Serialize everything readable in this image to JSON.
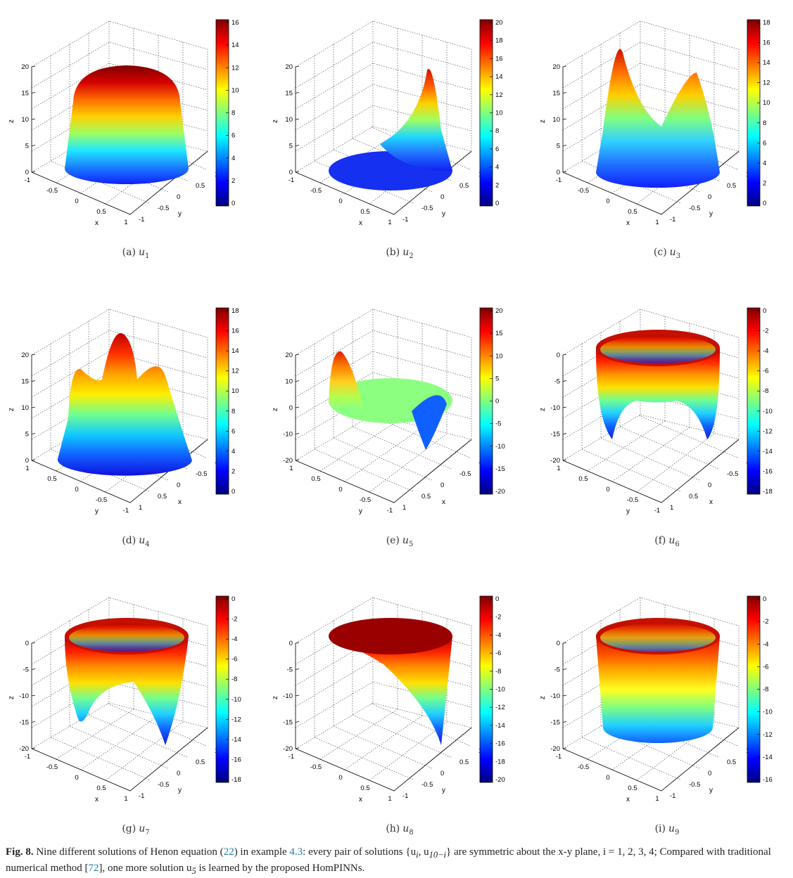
{
  "panels": [
    {
      "id": "a",
      "label": "(a)",
      "var": "u",
      "sub": "1",
      "orient": "xy",
      "zticks": [
        "0",
        "5",
        "10",
        "15",
        "20"
      ],
      "cb": [
        "16",
        "14",
        "12",
        "10",
        "8",
        "6",
        "4",
        "2",
        "0"
      ],
      "type": "dome"
    },
    {
      "id": "b",
      "label": "(b)",
      "var": "u",
      "sub": "2",
      "orient": "xy",
      "zticks": [
        "0",
        "5",
        "10",
        "15",
        "20"
      ],
      "cb": [
        "20",
        "18",
        "16",
        "14",
        "12",
        "10",
        "8",
        "6",
        "4",
        "2",
        "0"
      ],
      "type": "peak1"
    },
    {
      "id": "c",
      "label": "(c)",
      "var": "u",
      "sub": "3",
      "orient": "xy",
      "zticks": [
        "0",
        "5",
        "10",
        "15",
        "20"
      ],
      "cb": [
        "18",
        "16",
        "14",
        "12",
        "10",
        "8",
        "6",
        "4",
        "2",
        "0"
      ],
      "type": "peak2"
    },
    {
      "id": "d",
      "label": "(d)",
      "var": "u",
      "sub": "4",
      "orient": "yx",
      "zticks": [
        "0",
        "5",
        "10",
        "15",
        "20"
      ],
      "cb": [
        "18",
        "16",
        "14",
        "12",
        "10",
        "8",
        "6",
        "4",
        "2",
        "0"
      ],
      "type": "peak3"
    },
    {
      "id": "e",
      "label": "(e)",
      "var": "u",
      "sub": "5",
      "orient": "yx",
      "zticks": [
        "-20",
        "-10",
        "0",
        "10",
        "20"
      ],
      "cb": [
        "20",
        "15",
        "10",
        "5",
        "0",
        "-5",
        "-10",
        "-15",
        "-20"
      ],
      "type": "saddle"
    },
    {
      "id": "f",
      "label": "(f)",
      "var": "u",
      "sub": "6",
      "orient": "yx",
      "zticks": [
        "-20",
        "-15",
        "-10",
        "-5",
        "0"
      ],
      "cb": [
        "0",
        "-2",
        "-4",
        "-6",
        "-8",
        "-10",
        "-12",
        "-14",
        "-16",
        "-18"
      ],
      "type": "cup3"
    },
    {
      "id": "g",
      "label": "(g)",
      "var": "u",
      "sub": "7",
      "orient": "xy",
      "zticks": [
        "-20",
        "-15",
        "-10",
        "-5",
        "0"
      ],
      "cb": [
        "0",
        "-2",
        "-4",
        "-6",
        "-8",
        "-10",
        "-12",
        "-14",
        "-16",
        "-18"
      ],
      "type": "cup2"
    },
    {
      "id": "h",
      "label": "(h)",
      "var": "u",
      "sub": "8",
      "orient": "xy",
      "zticks": [
        "-20",
        "-15",
        "-10",
        "-5",
        "0"
      ],
      "cb": [
        "0",
        "-2",
        "-4",
        "-6",
        "-8",
        "-10",
        "-12",
        "-14",
        "-16",
        "-18",
        "-20"
      ],
      "type": "cup1"
    },
    {
      "id": "i",
      "label": "(i)",
      "var": "u",
      "sub": "9",
      "orient": "xy",
      "zticks": [
        "-20",
        "-15",
        "-10",
        "-5",
        "0"
      ],
      "cb": [
        "0",
        "-2",
        "-4",
        "-6",
        "-8",
        "-10",
        "-12",
        "-14",
        "-16"
      ],
      "type": "cup0"
    }
  ],
  "axes": {
    "x_label": "x",
    "y_label": "y",
    "z_label": "z",
    "x_ticks": [
      "-1",
      "-0.5",
      "0",
      "0.5",
      "1"
    ],
    "y_ticks": [
      "-1",
      "-0.5",
      "0",
      "0.5",
      "1"
    ]
  },
  "caption": {
    "fig_no": "Fig. 8.",
    "t1": " Nine different solutions of Henon equation (",
    "eq_ref": "22",
    "t2": ") in example ",
    "ex_ref": "4.3",
    "t3": ": every pair of solutions {u",
    "sub_i": "i",
    "t4": ", u",
    "sub_10i": "10−i",
    "t5": "} are symmetric about the x-y plane, i = 1, 2, 3, 4; Compared with traditional numerical method [",
    "ref72": "72",
    "t6": "], one more solution u",
    "sub_5": "5",
    "t7": " is learned by the proposed HomPINNs."
  },
  "colors": {
    "link": "#1a7fa8",
    "colormap": "jet"
  }
}
